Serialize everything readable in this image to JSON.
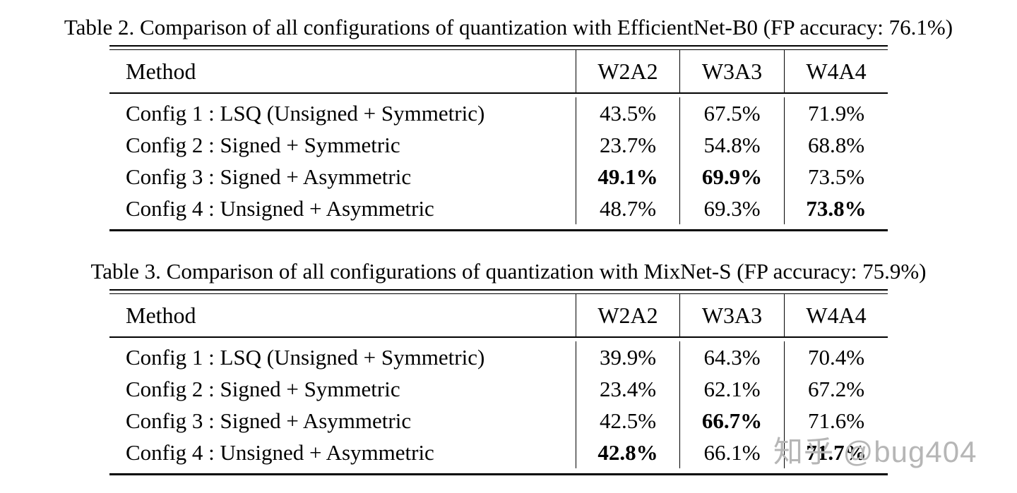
{
  "page": {
    "background": "#ffffff",
    "text_color": "#000000",
    "rule_color": "#000000",
    "watermark_color": "#b6b6b6"
  },
  "watermark": "知乎 @bug404",
  "tables": [
    {
      "caption": "Table 2. Comparison of all configurations of quantization with EfficientNet-B0 (FP accuracy: 76.1%)",
      "columns": [
        "Method",
        "W2A2",
        "W3A3",
        "W4A4"
      ],
      "rows": [
        {
          "method": "Config 1 : LSQ (Unsigned + Symmetric)",
          "values": [
            "43.5%",
            "67.5%",
            "71.9%"
          ],
          "bold": [
            false,
            false,
            false
          ]
        },
        {
          "method": "Config 2 : Signed + Symmetric",
          "values": [
            "23.7%",
            "54.8%",
            "68.8%"
          ],
          "bold": [
            false,
            false,
            false
          ]
        },
        {
          "method": "Config 3 : Signed + Asymmetric",
          "values": [
            "49.1%",
            "69.9%",
            "73.5%"
          ],
          "bold": [
            true,
            true,
            false
          ]
        },
        {
          "method": "Config 4 : Unsigned + Asymmetric",
          "values": [
            "48.7%",
            "69.3%",
            "73.8%"
          ],
          "bold": [
            false,
            false,
            true
          ]
        }
      ]
    },
    {
      "caption": "Table 3. Comparison of all configurations of quantization with MixNet-S (FP accuracy: 75.9%)",
      "columns": [
        "Method",
        "W2A2",
        "W3A3",
        "W4A4"
      ],
      "rows": [
        {
          "method": "Config 1 : LSQ (Unsigned + Symmetric)",
          "values": [
            "39.9%",
            "64.3%",
            "70.4%"
          ],
          "bold": [
            false,
            false,
            false
          ]
        },
        {
          "method": "Config 2 : Signed + Symmetric",
          "values": [
            "23.4%",
            "62.1%",
            "67.2%"
          ],
          "bold": [
            false,
            false,
            false
          ]
        },
        {
          "method": "Config 3 : Signed + Asymmetric",
          "values": [
            "42.5%",
            "66.7%",
            "71.6%"
          ],
          "bold": [
            false,
            true,
            false
          ]
        },
        {
          "method": "Config 4 : Unsigned + Asymmetric",
          "values": [
            "42.8%",
            "66.1%",
            "71.7%"
          ],
          "bold": [
            true,
            false,
            true
          ]
        }
      ]
    }
  ]
}
